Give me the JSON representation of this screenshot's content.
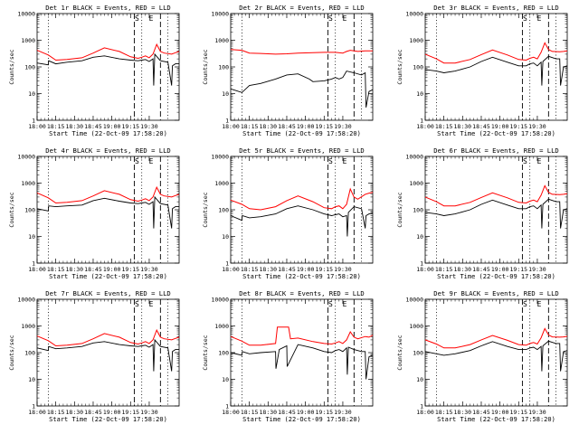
{
  "common": {
    "start_time_label": "Start Time (22-Oct-09 17:58:20)",
    "ylabel": "Counts/sec",
    "x_tick_labels": [
      "18:00",
      "18:15",
      "18:30",
      "18:45",
      "19:00",
      "19:15",
      "19:30"
    ],
    "y_tick_labels": [
      "1",
      "10",
      "100",
      "1000",
      "10000"
    ],
    "marker_labels": [
      "S",
      "E"
    ],
    "colors": {
      "events": "#000000",
      "lld": "#ff0000",
      "axes": "#000000",
      "background": "#ffffff"
    }
  },
  "chart_data": [
    {
      "type": "line",
      "title": "Det 1r BLACK = Events, RED = LLD",
      "ylim": [
        1,
        10000
      ],
      "yscale": "log",
      "xlim_minutes_after_18": [
        0,
        38
      ],
      "series": [
        {
          "name": "BLACK = Events",
          "values": "black"
        },
        {
          "name": "RED = LLD",
          "values": "red"
        }
      ],
      "black_minutes": [
        0,
        3,
        3.1,
        5,
        8,
        12,
        15,
        18,
        22,
        25,
        27,
        28,
        29,
        30,
        31,
        31.2,
        31.5,
        33,
        35,
        36,
        36.2,
        37,
        38
      ],
      "black_values": [
        140,
        120,
        170,
        130,
        150,
        170,
        230,
        260,
        200,
        180,
        170,
        180,
        190,
        160,
        200,
        20,
        300,
        170,
        150,
        20,
        110,
        130,
        130
      ],
      "red_minutes": [
        0,
        3,
        5,
        8,
        12,
        15,
        18,
        22,
        25,
        27,
        28,
        29,
        30,
        31,
        32,
        33,
        34,
        36,
        37,
        38
      ],
      "red_values": [
        420,
        280,
        180,
        190,
        220,
        330,
        520,
        380,
        240,
        210,
        230,
        260,
        220,
        300,
        700,
        380,
        330,
        300,
        340,
        380
      ]
    },
    {
      "type": "line",
      "title": "Det 2r BLACK = Events, RED = LLD",
      "ylim": [
        1,
        10000
      ],
      "yscale": "log",
      "xlim_minutes_after_18": [
        0,
        38
      ],
      "series": [
        {
          "name": "BLACK = Events",
          "values": "black"
        },
        {
          "name": "RED = LLD",
          "values": "red"
        }
      ],
      "black_minutes": [
        0,
        3,
        5,
        8,
        12,
        15,
        18,
        21,
        22,
        25,
        27,
        28,
        29,
        30,
        31,
        33,
        35,
        36,
        36.2,
        37,
        38
      ],
      "black_values": [
        15,
        11,
        20,
        24,
        35,
        50,
        55,
        35,
        28,
        30,
        35,
        40,
        35,
        40,
        70,
        60,
        50,
        60,
        3,
        12,
        14
      ],
      "red_minutes": [
        0,
        3,
        5,
        8,
        12,
        15,
        18,
        22,
        25,
        28,
        30,
        31,
        32,
        34,
        36,
        38
      ],
      "red_values": [
        450,
        420,
        330,
        320,
        300,
        310,
        330,
        340,
        350,
        350,
        330,
        380,
        420,
        380,
        400,
        400
      ]
    },
    {
      "type": "line",
      "title": "Det 3r BLACK = Events, RED = LLD",
      "ylim": [
        1,
        10000
      ],
      "yscale": "log",
      "xlim_minutes_after_18": [
        0,
        38
      ],
      "series": [
        {
          "name": "BLACK = Events",
          "values": "black"
        },
        {
          "name": "RED = LLD",
          "values": "red"
        }
      ],
      "black_minutes": [
        0,
        3,
        5,
        8,
        12,
        15,
        18,
        22,
        25,
        27,
        28,
        29,
        30,
        31,
        31.2,
        31.5,
        33,
        35,
        36,
        36.2,
        37,
        38
      ],
      "black_values": [
        80,
        70,
        60,
        70,
        100,
        160,
        230,
        150,
        110,
        110,
        130,
        140,
        110,
        150,
        20,
        160,
        250,
        200,
        200,
        20,
        100,
        110
      ],
      "red_minutes": [
        0,
        3,
        5,
        8,
        12,
        15,
        18,
        22,
        25,
        27,
        28,
        29,
        30,
        31,
        32,
        33,
        34,
        36,
        37,
        38
      ],
      "red_values": [
        300,
        200,
        140,
        140,
        190,
        290,
        430,
        280,
        190,
        180,
        210,
        230,
        200,
        350,
        800,
        450,
        380,
        370,
        380,
        400
      ]
    },
    {
      "type": "line",
      "title": "Det 4r BLACK = Events, RED = LLD",
      "ylim": [
        1,
        10000
      ],
      "yscale": "log",
      "xlim_minutes_after_18": [
        0,
        38
      ],
      "series": [
        {
          "name": "BLACK = Events",
          "values": "black"
        },
        {
          "name": "RED = LLD",
          "values": "red"
        }
      ],
      "black_minutes": [
        0,
        3,
        3.1,
        5,
        8,
        12,
        15,
        18,
        22,
        25,
        27,
        28,
        29,
        30,
        31,
        31.2,
        31.5,
        33,
        35,
        36,
        36.2,
        37,
        38
      ],
      "black_values": [
        110,
        90,
        140,
        130,
        140,
        150,
        220,
        270,
        210,
        180,
        170,
        180,
        190,
        160,
        200,
        20,
        300,
        170,
        150,
        20,
        110,
        130,
        130
      ],
      "red_minutes": [
        0,
        3,
        5,
        8,
        12,
        15,
        18,
        22,
        25,
        27,
        28,
        29,
        30,
        31,
        32,
        33,
        34,
        36,
        37,
        38
      ],
      "red_values": [
        430,
        280,
        180,
        190,
        220,
        330,
        520,
        380,
        240,
        210,
        230,
        260,
        220,
        300,
        700,
        380,
        330,
        300,
        340,
        380
      ]
    },
    {
      "type": "line",
      "title": "Det 5r BLACK = Events, RED = LLD",
      "ylim": [
        1,
        10000
      ],
      "yscale": "log",
      "xlim_minutes_after_18": [
        0,
        38
      ],
      "series": [
        {
          "name": "BLACK = Events",
          "values": "black"
        },
        {
          "name": "RED = LLD",
          "values": "red"
        }
      ],
      "black_minutes": [
        0,
        3,
        3.1,
        5,
        8,
        12,
        15,
        18,
        22,
        25,
        27,
        28,
        29,
        30,
        31,
        31.2,
        31.5,
        33,
        35,
        36,
        36.2,
        37,
        38
      ],
      "black_values": [
        60,
        40,
        60,
        50,
        55,
        70,
        110,
        140,
        100,
        70,
        60,
        65,
        70,
        55,
        60,
        10,
        80,
        130,
        110,
        20,
        60,
        70,
        75
      ],
      "red_minutes": [
        0,
        3,
        5,
        8,
        12,
        15,
        18,
        22,
        25,
        27,
        28,
        29,
        30,
        31,
        32,
        33,
        34,
        36,
        37,
        38
      ],
      "red_values": [
        230,
        160,
        110,
        100,
        130,
        220,
        330,
        200,
        120,
        110,
        130,
        140,
        110,
        160,
        600,
        300,
        250,
        380,
        420,
        450
      ]
    },
    {
      "type": "line",
      "title": "Det 6r BLACK = Events, RED = LLD",
      "ylim": [
        1,
        10000
      ],
      "yscale": "log",
      "xlim_minutes_after_18": [
        0,
        38
      ],
      "series": [
        {
          "name": "BLACK = Events",
          "values": "black"
        },
        {
          "name": "RED = LLD",
          "values": "red"
        }
      ],
      "black_minutes": [
        0,
        3,
        5,
        8,
        12,
        15,
        18,
        22,
        25,
        27,
        28,
        29,
        30,
        31,
        31.2,
        31.5,
        33,
        35,
        36,
        36.2,
        37,
        38
      ],
      "black_values": [
        80,
        70,
        60,
        70,
        100,
        160,
        230,
        150,
        110,
        110,
        130,
        140,
        110,
        150,
        20,
        160,
        250,
        200,
        200,
        20,
        100,
        110
      ],
      "red_minutes": [
        0,
        3,
        5,
        8,
        12,
        15,
        18,
        22,
        25,
        27,
        28,
        29,
        30,
        31,
        32,
        33,
        34,
        36,
        37,
        38
      ],
      "red_values": [
        300,
        200,
        140,
        140,
        190,
        290,
        430,
        280,
        190,
        180,
        210,
        230,
        200,
        350,
        800,
        450,
        380,
        370,
        380,
        400
      ]
    },
    {
      "type": "line",
      "title": "Det 7r BLACK = Events, RED = LLD",
      "ylim": [
        1,
        10000
      ],
      "yscale": "log",
      "xlim_minutes_after_18": [
        0,
        38
      ],
      "series": [
        {
          "name": "BLACK = Events",
          "values": "black"
        },
        {
          "name": "RED = LLD",
          "values": "red"
        }
      ],
      "black_minutes": [
        0,
        3,
        3.1,
        5,
        8,
        12,
        15,
        18,
        22,
        25,
        27,
        28,
        29,
        30,
        31,
        31.2,
        31.5,
        33,
        35,
        36,
        36.2,
        37,
        38
      ],
      "black_values": [
        150,
        120,
        170,
        140,
        150,
        170,
        230,
        260,
        200,
        180,
        170,
        180,
        190,
        160,
        200,
        20,
        300,
        170,
        150,
        20,
        110,
        130,
        130
      ],
      "red_minutes": [
        0,
        3,
        5,
        8,
        12,
        15,
        18,
        22,
        25,
        27,
        28,
        29,
        30,
        31,
        32,
        33,
        34,
        36,
        37,
        38
      ],
      "red_values": [
        420,
        280,
        180,
        190,
        220,
        330,
        520,
        380,
        240,
        210,
        230,
        260,
        220,
        300,
        700,
        380,
        330,
        300,
        340,
        380
      ]
    },
    {
      "type": "line",
      "title": "Det 8r BLACK = Events, RED = LLD",
      "ylim": [
        1,
        10000
      ],
      "yscale": "log",
      "xlim_minutes_after_18": [
        0,
        38
      ],
      "series": [
        {
          "name": "BLACK = Events",
          "values": "black"
        },
        {
          "name": "RED = LLD",
          "values": "red"
        }
      ],
      "black_minutes": [
        0,
        3,
        3.1,
        5,
        8,
        12,
        12.1,
        13,
        15,
        15.1,
        18,
        22,
        25,
        27,
        28,
        29,
        30,
        31,
        31.2,
        31.5,
        33,
        35,
        36,
        36.2,
        37,
        38
      ],
      "black_values": [
        100,
        80,
        110,
        90,
        100,
        110,
        25,
        130,
        180,
        30,
        200,
        150,
        110,
        100,
        120,
        130,
        110,
        150,
        15,
        160,
        130,
        110,
        110,
        10,
        70,
        80
      ],
      "red_minutes": [
        0,
        3,
        5,
        8,
        12,
        12.5,
        13,
        15,
        15.5,
        16,
        18,
        22,
        25,
        27,
        28,
        29,
        30,
        31,
        32,
        33,
        34,
        36,
        37,
        38
      ],
      "red_values": [
        400,
        270,
        190,
        190,
        220,
        900,
        900,
        900,
        900,
        330,
        350,
        260,
        220,
        210,
        230,
        260,
        220,
        300,
        600,
        380,
        330,
        400,
        380,
        450
      ]
    },
    {
      "type": "line",
      "title": "Det 9r BLACK = Events, RED = LLD",
      "ylim": [
        1,
        10000
      ],
      "yscale": "log",
      "xlim_minutes_after_18": [
        0,
        38
      ],
      "series": [
        {
          "name": "BLACK = Events",
          "values": "black"
        },
        {
          "name": "RED = LLD",
          "values": "red"
        }
      ],
      "black_minutes": [
        0,
        3,
        5,
        8,
        12,
        15,
        18,
        22,
        25,
        27,
        28,
        29,
        30,
        31,
        31.2,
        31.5,
        33,
        35,
        36,
        36.2,
        37,
        38
      ],
      "black_values": [
        110,
        90,
        80,
        90,
        120,
        180,
        260,
        170,
        130,
        130,
        150,
        160,
        130,
        170,
        20,
        180,
        270,
        220,
        220,
        20,
        110,
        120
      ],
      "red_minutes": [
        0,
        3,
        5,
        8,
        12,
        15,
        18,
        22,
        25,
        27,
        28,
        29,
        30,
        31,
        32,
        33,
        34,
        36,
        37,
        38
      ],
      "red_values": [
        300,
        210,
        150,
        150,
        200,
        300,
        440,
        290,
        200,
        190,
        220,
        240,
        210,
        360,
        800,
        460,
        390,
        380,
        390,
        410
      ]
    }
  ]
}
